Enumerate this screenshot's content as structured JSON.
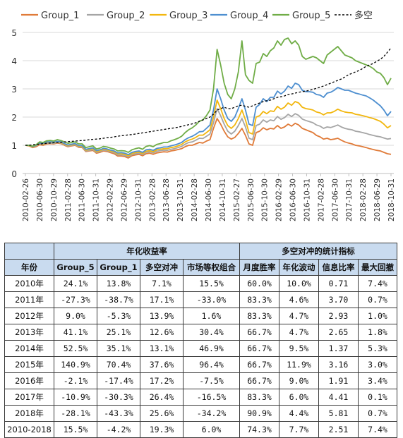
{
  "chart_data": {
    "type": "line",
    "ylim": [
      0,
      5
    ],
    "yticks": [
      0,
      1,
      2,
      3,
      4,
      5
    ],
    "grid": "horizontal",
    "legend_position": "top",
    "x_tick_labels": [
      "2010-02-26",
      "2010-06-30",
      "2010-10-29",
      "2011-02-28",
      "2011-06-30",
      "2011-10-31",
      "2012-02-29",
      "2012-06-29",
      "2012-10-31",
      "2013-02-28",
      "2013-06-28",
      "2013-10-31",
      "2014-02-28",
      "2014-06-30",
      "2014-10-31",
      "2015-02-27",
      "2015-06-30",
      "2015-10-30",
      "2016-02-29",
      "2016-06-30",
      "2016-10-31",
      "2017-02-28",
      "2017-06-30",
      "2017-10-31",
      "2018-02-28",
      "2018-06-29",
      "2018-10-31"
    ],
    "series": [
      {
        "name": "Group_1",
        "color": "#e07b39",
        "style": "solid",
        "values": [
          1.0,
          0.98,
          0.92,
          0.95,
          1.02,
          1.0,
          1.05,
          1.06,
          1.05,
          1.08,
          1.06,
          1.0,
          0.95,
          0.98,
          1.0,
          0.93,
          0.92,
          0.78,
          0.8,
          0.82,
          0.72,
          0.75,
          0.8,
          0.78,
          0.74,
          0.7,
          0.62,
          0.62,
          0.6,
          0.55,
          0.63,
          0.66,
          0.68,
          0.63,
          0.7,
          0.72,
          0.68,
          0.73,
          0.75,
          0.77,
          0.76,
          0.8,
          0.82,
          0.85,
          0.88,
          0.95,
          1.0,
          1.0,
          1.05,
          1.1,
          1.08,
          1.15,
          1.2,
          1.6,
          1.95,
          1.75,
          1.5,
          1.3,
          1.22,
          1.28,
          1.42,
          1.6,
          1.35,
          1.05,
          1.0,
          1.45,
          1.5,
          1.62,
          1.55,
          1.6,
          1.58,
          1.7,
          1.6,
          1.65,
          1.75,
          1.68,
          1.78,
          1.72,
          1.6,
          1.55,
          1.5,
          1.45,
          1.35,
          1.3,
          1.22,
          1.25,
          1.2,
          1.22,
          1.25,
          1.18,
          1.12,
          1.08,
          1.05,
          1.0,
          0.98,
          0.95,
          0.92,
          0.88,
          0.85,
          0.82,
          0.8,
          0.75,
          0.7,
          0.68
        ]
      },
      {
        "name": "Group_2",
        "color": "#a5a5a5",
        "style": "solid",
        "values": [
          1.0,
          0.99,
          0.94,
          0.98,
          1.05,
          1.03,
          1.08,
          1.08,
          1.07,
          1.1,
          1.08,
          1.02,
          0.97,
          1.0,
          1.02,
          0.95,
          0.94,
          0.8,
          0.82,
          0.85,
          0.75,
          0.78,
          0.83,
          0.81,
          0.77,
          0.74,
          0.66,
          0.66,
          0.64,
          0.59,
          0.67,
          0.7,
          0.72,
          0.67,
          0.75,
          0.77,
          0.73,
          0.79,
          0.81,
          0.83,
          0.82,
          0.86,
          0.88,
          0.92,
          0.96,
          1.04,
          1.1,
          1.12,
          1.18,
          1.25,
          1.24,
          1.32,
          1.4,
          1.8,
          2.3,
          2.05,
          1.75,
          1.5,
          1.4,
          1.5,
          1.7,
          1.95,
          1.65,
          1.25,
          1.2,
          1.7,
          1.75,
          1.9,
          1.82,
          1.9,
          1.87,
          2.02,
          1.92,
          1.98,
          2.1,
          2.02,
          2.12,
          2.06,
          1.93,
          1.88,
          1.84,
          1.8,
          1.72,
          1.68,
          1.6,
          1.65,
          1.63,
          1.67,
          1.72,
          1.65,
          1.6,
          1.57,
          1.55,
          1.5,
          1.48,
          1.45,
          1.42,
          1.38,
          1.35,
          1.32,
          1.3,
          1.26,
          1.22,
          1.24
        ]
      },
      {
        "name": "Group_3",
        "color": "#f2b70f",
        "style": "solid",
        "values": [
          1.0,
          0.99,
          0.95,
          0.99,
          1.07,
          1.05,
          1.1,
          1.1,
          1.09,
          1.12,
          1.1,
          1.04,
          0.99,
          1.02,
          1.04,
          0.97,
          0.97,
          0.83,
          0.85,
          0.88,
          0.78,
          0.81,
          0.86,
          0.84,
          0.8,
          0.77,
          0.7,
          0.7,
          0.68,
          0.63,
          0.71,
          0.74,
          0.76,
          0.71,
          0.79,
          0.81,
          0.77,
          0.84,
          0.86,
          0.88,
          0.88,
          0.92,
          0.94,
          0.98,
          1.03,
          1.12,
          1.18,
          1.22,
          1.28,
          1.36,
          1.36,
          1.45,
          1.55,
          2.0,
          2.6,
          2.3,
          1.95,
          1.7,
          1.6,
          1.72,
          1.95,
          2.25,
          1.9,
          1.45,
          1.4,
          2.0,
          2.05,
          2.2,
          2.12,
          2.22,
          2.2,
          2.38,
          2.28,
          2.35,
          2.5,
          2.42,
          2.55,
          2.5,
          2.35,
          2.3,
          2.28,
          2.25,
          2.18,
          2.15,
          2.08,
          2.15,
          2.15,
          2.2,
          2.28,
          2.22,
          2.18,
          2.16,
          2.15,
          2.1,
          2.08,
          2.05,
          2.02,
          1.98,
          1.95,
          1.9,
          1.85,
          1.75,
          1.62,
          1.7
        ]
      },
      {
        "name": "Group_4",
        "color": "#4e8fd0",
        "style": "solid",
        "values": [
          1.0,
          1.0,
          0.96,
          1.0,
          1.08,
          1.07,
          1.12,
          1.12,
          1.11,
          1.14,
          1.12,
          1.06,
          1.01,
          1.04,
          1.06,
          0.99,
          0.99,
          0.86,
          0.88,
          0.91,
          0.81,
          0.84,
          0.89,
          0.87,
          0.83,
          0.8,
          0.73,
          0.74,
          0.72,
          0.67,
          0.75,
          0.78,
          0.8,
          0.75,
          0.84,
          0.86,
          0.82,
          0.89,
          0.91,
          0.94,
          0.94,
          0.98,
          1.01,
          1.05,
          1.1,
          1.2,
          1.27,
          1.32,
          1.39,
          1.48,
          1.49,
          1.6,
          1.72,
          2.25,
          3.0,
          2.65,
          2.25,
          1.95,
          1.85,
          2.0,
          2.3,
          2.65,
          2.25,
          1.75,
          1.7,
          2.35,
          2.45,
          2.65,
          2.55,
          2.7,
          2.7,
          2.92,
          2.82,
          2.92,
          3.1,
          3.02,
          3.2,
          3.15,
          2.95,
          2.9,
          2.9,
          2.88,
          2.8,
          2.78,
          2.7,
          2.85,
          2.88,
          2.95,
          3.05,
          3.0,
          2.95,
          2.95,
          2.9,
          2.85,
          2.82,
          2.78,
          2.75,
          2.68,
          2.6,
          2.5,
          2.4,
          2.25,
          2.05,
          2.2
        ]
      },
      {
        "name": "Group_5",
        "color": "#70ad47",
        "style": "solid",
        "values": [
          1.0,
          1.0,
          0.97,
          1.02,
          1.12,
          1.1,
          1.16,
          1.17,
          1.15,
          1.2,
          1.17,
          1.12,
          1.07,
          1.1,
          1.12,
          1.05,
          1.05,
          0.92,
          0.95,
          0.98,
          0.87,
          0.9,
          0.96,
          0.94,
          0.9,
          0.87,
          0.8,
          0.81,
          0.8,
          0.75,
          0.84,
          0.88,
          0.91,
          0.86,
          0.96,
          0.99,
          0.95,
          1.03,
          1.06,
          1.1,
          1.1,
          1.16,
          1.2,
          1.25,
          1.32,
          1.45,
          1.55,
          1.62,
          1.72,
          1.85,
          1.9,
          2.05,
          2.25,
          3.0,
          4.4,
          3.85,
          3.2,
          2.8,
          2.65,
          3.0,
          3.6,
          4.7,
          3.5,
          3.3,
          3.2,
          3.9,
          3.95,
          4.25,
          4.15,
          4.35,
          4.45,
          4.7,
          4.55,
          4.75,
          4.8,
          4.6,
          4.7,
          4.55,
          4.15,
          4.05,
          4.1,
          4.15,
          4.1,
          4.0,
          3.9,
          4.2,
          4.3,
          4.4,
          4.5,
          4.35,
          4.2,
          4.15,
          4.1,
          4.0,
          3.95,
          3.9,
          3.85,
          3.8,
          3.72,
          3.6,
          3.55,
          3.4,
          3.15,
          3.38
        ]
      },
      {
        "name": "多空",
        "color": "#000000",
        "style": "dashed",
        "values": [
          1.0,
          1.0,
          1.02,
          1.03,
          1.04,
          1.06,
          1.07,
          1.08,
          1.09,
          1.1,
          1.11,
          1.12,
          1.13,
          1.14,
          1.15,
          1.16,
          1.17,
          1.18,
          1.2,
          1.21,
          1.22,
          1.23,
          1.25,
          1.27,
          1.28,
          1.3,
          1.32,
          1.34,
          1.35,
          1.37,
          1.38,
          1.4,
          1.42,
          1.44,
          1.46,
          1.48,
          1.5,
          1.52,
          1.54,
          1.56,
          1.58,
          1.6,
          1.62,
          1.64,
          1.67,
          1.7,
          1.73,
          1.76,
          1.8,
          1.85,
          1.9,
          1.95,
          2.0,
          2.1,
          2.25,
          2.3,
          2.35,
          2.3,
          2.3,
          2.35,
          2.4,
          2.42,
          2.38,
          2.35,
          2.4,
          2.45,
          2.5,
          2.55,
          2.58,
          2.6,
          2.65,
          2.7,
          2.72,
          2.75,
          2.8,
          2.82,
          2.85,
          2.88,
          2.9,
          2.92,
          2.95,
          2.98,
          3.02,
          3.06,
          3.1,
          3.15,
          3.2,
          3.25,
          3.3,
          3.35,
          3.42,
          3.5,
          3.55,
          3.6,
          3.65,
          3.72,
          3.8,
          3.85,
          3.9,
          3.98,
          4.05,
          4.15,
          4.3,
          4.45
        ]
      }
    ]
  },
  "table": {
    "group_headers": [
      "年化收益率",
      "多空对冲的统计指标"
    ],
    "columns": [
      "年份",
      "Group_5",
      "Group_1",
      "多空对冲",
      "市场等权组合",
      "月度胜率",
      "年化波动",
      "信息比率",
      "最大回撤"
    ],
    "rows": [
      [
        "2010年",
        "24.1%",
        "13.8%",
        "7.1%",
        "15.5%",
        "60.0%",
        "10.0%",
        "0.71",
        "7.4%"
      ],
      [
        "2011年",
        "-27.3%",
        "-38.7%",
        "17.1%",
        "-33.0%",
        "83.3%",
        "4.6%",
        "3.70",
        "0.7%"
      ],
      [
        "2012年",
        "9.0%",
        "-5.3%",
        "13.9%",
        "1.6%",
        "83.3%",
        "4.7%",
        "2.93",
        "1.0%"
      ],
      [
        "2013年",
        "41.1%",
        "25.1%",
        "12.6%",
        "30.4%",
        "66.7%",
        "4.7%",
        "2.65",
        "1.8%"
      ],
      [
        "2014年",
        "52.5%",
        "35.1%",
        "13.1%",
        "46.9%",
        "66.7%",
        "9.5%",
        "1.37",
        "5.3%"
      ],
      [
        "2015年",
        "140.9%",
        "70.4%",
        "37.6%",
        "96.4%",
        "66.7%",
        "11.9%",
        "3.16",
        "3.0%"
      ],
      [
        "2016年",
        "-2.1%",
        "-17.4%",
        "17.2%",
        "-7.5%",
        "66.7%",
        "9.0%",
        "1.91",
        "3.4%"
      ],
      [
        "2017年",
        "-10.9%",
        "-30.3%",
        "26.4%",
        "-16.5%",
        "83.3%",
        "6.0%",
        "4.41",
        "0.1%"
      ],
      [
        "2018年",
        "-28.1%",
        "-43.3%",
        "25.6%",
        "-34.2%",
        "90.9%",
        "4.4%",
        "5.81",
        "0.7%"
      ],
      [
        "2010-2018",
        "15.5%",
        "-4.2%",
        "19.3%",
        "6.0%",
        "74.3%",
        "7.7%",
        "2.51",
        "7.4%"
      ]
    ]
  }
}
